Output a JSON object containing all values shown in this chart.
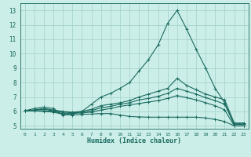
{
  "xlabel": "Humidex (Indice chaleur)",
  "bg_color": "#cceee8",
  "grid_color": "#a8d4ce",
  "line_color": "#1a6b60",
  "xlim": [
    -0.5,
    23.5
  ],
  "ylim": [
    4.8,
    13.5
  ],
  "xticks": [
    0,
    1,
    2,
    3,
    4,
    5,
    6,
    7,
    8,
    9,
    10,
    11,
    12,
    13,
    14,
    15,
    16,
    17,
    18,
    19,
    20,
    21,
    22,
    23
  ],
  "yticks": [
    5,
    6,
    7,
    8,
    9,
    10,
    11,
    12,
    13
  ],
  "series": [
    {
      "x": [
        0,
        1,
        2,
        3,
        4,
        5,
        6,
        7,
        8,
        9,
        10,
        11,
        12,
        13,
        14,
        15,
        16,
        17,
        18,
        19,
        20,
        21,
        22,
        23
      ],
      "y": [
        6.05,
        6.2,
        6.3,
        6.2,
        5.75,
        5.85,
        6.0,
        6.5,
        7.0,
        7.25,
        7.6,
        8.0,
        8.8,
        9.6,
        10.6,
        12.1,
        13.0,
        11.7,
        10.3,
        9.0,
        7.6,
        6.6,
        5.1,
        5.2
      ]
    },
    {
      "x": [
        0,
        1,
        2,
        3,
        4,
        5,
        6,
        7,
        8,
        9,
        10,
        11,
        12,
        13,
        14,
        15,
        16,
        17,
        18,
        19,
        20,
        21,
        22,
        23
      ],
      "y": [
        6.05,
        6.1,
        6.2,
        6.1,
        6.0,
        5.95,
        6.0,
        6.15,
        6.4,
        6.5,
        6.6,
        6.75,
        7.0,
        7.2,
        7.4,
        7.6,
        8.3,
        7.8,
        7.5,
        7.2,
        7.0,
        6.8,
        5.2,
        5.2
      ]
    },
    {
      "x": [
        0,
        1,
        2,
        3,
        4,
        5,
        6,
        7,
        8,
        9,
        10,
        11,
        12,
        13,
        14,
        15,
        16,
        17,
        18,
        19,
        20,
        21,
        22,
        23
      ],
      "y": [
        6.05,
        6.1,
        6.15,
        6.05,
        5.95,
        5.9,
        5.95,
        6.05,
        6.25,
        6.35,
        6.5,
        6.6,
        6.8,
        6.9,
        7.05,
        7.25,
        7.6,
        7.4,
        7.2,
        6.95,
        6.75,
        6.5,
        5.1,
        5.1
      ]
    },
    {
      "x": [
        0,
        1,
        2,
        3,
        4,
        5,
        6,
        7,
        8,
        9,
        10,
        11,
        12,
        13,
        14,
        15,
        16,
        17,
        18,
        19,
        20,
        21,
        22,
        23
      ],
      "y": [
        6.05,
        6.05,
        6.05,
        6.0,
        5.85,
        5.85,
        5.9,
        5.95,
        6.1,
        6.2,
        6.35,
        6.45,
        6.55,
        6.65,
        6.75,
        6.9,
        7.1,
        6.95,
        6.8,
        6.6,
        6.4,
        6.1,
        5.0,
        5.0
      ]
    },
    {
      "x": [
        0,
        1,
        2,
        3,
        4,
        5,
        6,
        7,
        8,
        9,
        10,
        11,
        12,
        13,
        14,
        15,
        16,
        17,
        18,
        19,
        20,
        21,
        22,
        23
      ],
      "y": [
        6.05,
        6.05,
        6.0,
        5.95,
        5.8,
        5.75,
        5.8,
        5.82,
        5.85,
        5.85,
        5.75,
        5.65,
        5.62,
        5.6,
        5.6,
        5.6,
        5.6,
        5.6,
        5.6,
        5.55,
        5.45,
        5.3,
        5.0,
        5.0
      ]
    }
  ]
}
